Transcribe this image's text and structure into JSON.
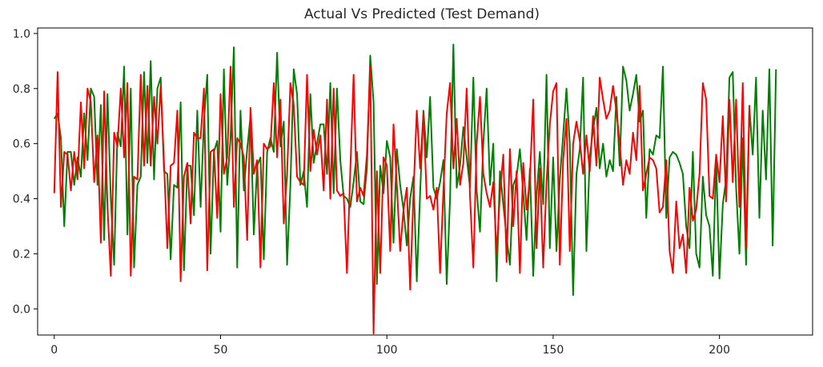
{
  "chart_data": {
    "type": "line",
    "title": "Actual Vs Predicted (Test Demand)",
    "xlabel": "",
    "ylabel": "",
    "xlim": [
      -5,
      228
    ],
    "ylim": [
      -0.095,
      1.02
    ],
    "xticks": [
      0,
      50,
      100,
      150,
      200
    ],
    "xtick_labels": [
      "0",
      "50",
      "100",
      "150",
      "200"
    ],
    "yticks": [
      0.0,
      0.2,
      0.4,
      0.6,
      0.8,
      1.0
    ],
    "ytick_labels": [
      "0.0",
      "0.2",
      "0.4",
      "0.6",
      "0.8",
      "1.0"
    ],
    "grid": false,
    "legend": "none",
    "series": [
      {
        "color": "#008000",
        "values": [
          0.69,
          0.71,
          0.62,
          0.3,
          0.57,
          0.57,
          0.45,
          0.55,
          0.48,
          0.71,
          0.54,
          0.8,
          0.77,
          0.45,
          0.74,
          0.25,
          0.78,
          0.4,
          0.16,
          0.64,
          0.59,
          0.88,
          0.27,
          0.8,
          0.15,
          0.45,
          0.48,
          0.86,
          0.53,
          0.9,
          0.47,
          0.8,
          0.84,
          0.5,
          0.49,
          0.18,
          0.45,
          0.44,
          0.75,
          0.14,
          0.52,
          0.52,
          0.34,
          0.72,
          0.37,
          0.68,
          0.85,
          0.2,
          0.57,
          0.61,
          0.28,
          0.87,
          0.45,
          0.62,
          0.95,
          0.15,
          0.72,
          0.43,
          0.58,
          0.7,
          0.27,
          0.52,
          0.55,
          0.18,
          0.57,
          0.62,
          0.57,
          0.93,
          0.59,
          0.68,
          0.16,
          0.45,
          0.87,
          0.78,
          0.45,
          0.5,
          0.37,
          0.78,
          0.53,
          0.6,
          0.67,
          0.67,
          0.49,
          0.82,
          0.42,
          0.8,
          0.54,
          0.41,
          0.4,
          0.37,
          0.46,
          0.57,
          0.39,
          0.38,
          0.51,
          0.92,
          0.75,
          0.09,
          0.52,
          0.42,
          0.61,
          0.55,
          0.24,
          0.58,
          0.45,
          0.36,
          0.23,
          0.4,
          0.48,
          0.1,
          0.42,
          0.72,
          0.55,
          0.77,
          0.44,
          0.4,
          0.46,
          0.54,
          0.09,
          0.4,
          0.96,
          0.44,
          0.52,
          0.66,
          0.55,
          0.44,
          0.84,
          0.43,
          0.28,
          0.6,
          0.8,
          0.45,
          0.6,
          0.1,
          0.5,
          0.38,
          0.26,
          0.16,
          0.45,
          0.48,
          0.58,
          0.42,
          0.25,
          0.51,
          0.12,
          0.41,
          0.57,
          0.38,
          0.85,
          0.22,
          0.55,
          0.21,
          0.47,
          0.63,
          0.8,
          0.6,
          0.05,
          0.49,
          0.58,
          0.84,
          0.21,
          0.55,
          0.65,
          0.73,
          0.51,
          0.6,
          0.48,
          0.54,
          0.5,
          0.77,
          0.52,
          0.88,
          0.83,
          0.72,
          0.78,
          0.85,
          0.68,
          0.72,
          0.33,
          0.58,
          0.56,
          0.63,
          0.62,
          0.88,
          0.33,
          0.55,
          0.57,
          0.56,
          0.53,
          0.49,
          0.3,
          0.22,
          0.57,
          0.2,
          0.15,
          0.48,
          0.34,
          0.3,
          0.12,
          0.54,
          0.11,
          0.38,
          0.47,
          0.84,
          0.86,
          0.44,
          0.2,
          0.62,
          0.16,
          0.73,
          0.56,
          0.84,
          0.33,
          0.72,
          0.47,
          0.87,
          0.23,
          0.87
        ]
      },
      {
        "color": "#ff0000",
        "values": [
          0.42,
          0.86,
          0.37,
          0.57,
          0.56,
          0.43,
          0.57,
          0.47,
          0.75,
          0.51,
          0.8,
          0.75,
          0.46,
          0.63,
          0.24,
          0.79,
          0.37,
          0.12,
          0.64,
          0.59,
          0.8,
          0.55,
          0.82,
          0.12,
          0.48,
          0.47,
          0.85,
          0.52,
          0.81,
          0.52,
          0.77,
          0.6,
          0.81,
          0.53,
          0.22,
          0.52,
          0.53,
          0.72,
          0.1,
          0.48,
          0.53,
          0.31,
          0.64,
          0.62,
          0.62,
          0.8,
          0.14,
          0.57,
          0.58,
          0.33,
          0.78,
          0.49,
          0.55,
          0.88,
          0.37,
          0.62,
          0.6,
          0.55,
          0.25,
          0.73,
          0.49,
          0.54,
          0.15,
          0.6,
          0.58,
          0.59,
          0.82,
          0.55,
          0.76,
          0.31,
          0.49,
          0.82,
          0.74,
          0.48,
          0.46,
          0.45,
          0.85,
          0.5,
          0.65,
          0.56,
          0.63,
          0.43,
          0.76,
          0.4,
          0.8,
          0.43,
          0.41,
          0.42,
          0.13,
          0.5,
          0.85,
          0.39,
          0.44,
          0.41,
          0.56,
          0.88,
          -0.09,
          0.5,
          0.13,
          0.55,
          0.52,
          0.21,
          0.67,
          0.45,
          0.21,
          0.36,
          0.44,
          0.07,
          0.42,
          0.72,
          0.51,
          0.71,
          0.4,
          0.41,
          0.36,
          0.44,
          0.13,
          0.43,
          0.71,
          0.82,
          0.51,
          0.69,
          0.45,
          0.53,
          0.8,
          0.41,
          0.15,
          0.6,
          0.77,
          0.49,
          0.42,
          0.37,
          0.46,
          0.2,
          0.42,
          0.56,
          0.17,
          0.58,
          0.3,
          0.5,
          0.13,
          0.53,
          0.36,
          0.47,
          0.76,
          0.22,
          0.51,
          0.15,
          0.46,
          0.67,
          0.79,
          0.82,
          0.16,
          0.54,
          0.69,
          0.21,
          0.6,
          0.68,
          0.61,
          0.49,
          0.63,
          0.5,
          0.7,
          0.52,
          0.84,
          0.76,
          0.69,
          0.72,
          0.81,
          0.72,
          0.6,
          0.45,
          0.54,
          0.49,
          0.64,
          0.54,
          0.81,
          0.43,
          0.49,
          0.55,
          0.54,
          0.51,
          0.35,
          0.37,
          0.54,
          0.21,
          0.13,
          0.39,
          0.22,
          0.27,
          0.13,
          0.44,
          0.32,
          0.36,
          0.49,
          0.82,
          0.76,
          0.41,
          0.4,
          0.56,
          0.46,
          0.7,
          0.39,
          0.76,
          0.46,
          0.76,
          0.37,
          0.82,
          0.22,
          0.74
        ]
      }
    ]
  }
}
